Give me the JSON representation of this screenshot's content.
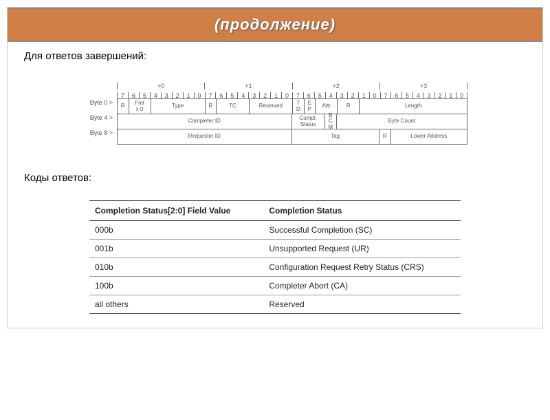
{
  "title": "(продолжение)",
  "section1_label": "Для ответов завершений:",
  "section2_label": "Коды ответов:",
  "diagram": {
    "offsets": [
      "+0",
      "+1",
      "+2",
      "+3"
    ],
    "bits": [
      "7",
      "6",
      "5",
      "4",
      "3",
      "2",
      "1",
      "0"
    ],
    "row_labels": [
      "Byte 0 >",
      "Byte 4 >",
      "Byte 8 >"
    ],
    "row0_fields": [
      {
        "label": "R",
        "w": 1
      },
      {
        "label": "Fmt\nx 0",
        "w": 2
      },
      {
        "label": "Type",
        "w": 5
      },
      {
        "label": "R",
        "w": 1
      },
      {
        "label": "TC",
        "w": 3
      },
      {
        "label": "Reserved",
        "w": 4
      },
      {
        "label": "T\nD",
        "w": 1
      },
      {
        "label": "E\nP",
        "w": 1
      },
      {
        "label": "Attr",
        "w": 2
      },
      {
        "label": "R",
        "w": 2
      },
      {
        "label": "Length",
        "w": 10
      }
    ],
    "row1_fields": [
      {
        "label": "Completer ID",
        "w": 16
      },
      {
        "label": "Compl.\nStatus",
        "w": 3
      },
      {
        "label": "B\nC\nM",
        "w": 1
      },
      {
        "label": "Byte Count",
        "w": 12
      }
    ],
    "row2_fields": [
      {
        "label": "Requester ID",
        "w": 16
      },
      {
        "label": "Tag",
        "w": 8
      },
      {
        "label": "R",
        "w": 1
      },
      {
        "label": "Lower Address",
        "w": 7
      }
    ]
  },
  "status_table": {
    "col1_header": "Completion Status[2:0] Field Value",
    "col2_header": "Completion Status",
    "rows": [
      {
        "code": "000b",
        "desc": "Successful Completion (SC)"
      },
      {
        "code": "001b",
        "desc": "Unsupported Request (UR)"
      },
      {
        "code": "010b",
        "desc": "Configuration Request Retry Status (CRS)"
      },
      {
        "code": "100b",
        "desc": "Completer Abort (CA)"
      },
      {
        "code": "all others",
        "desc": "Reserved"
      }
    ]
  },
  "colors": {
    "title_bg": "#d08046",
    "title_text": "#ffffff",
    "border": "#666666"
  }
}
